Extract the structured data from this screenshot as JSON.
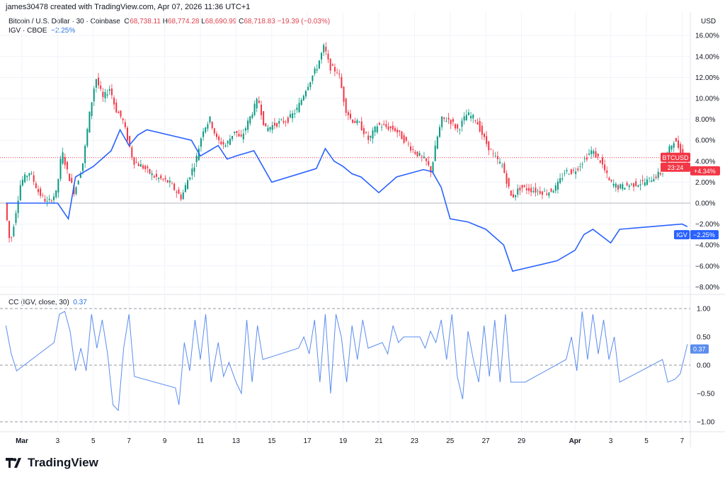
{
  "header": {
    "credit": "james30478 created with TradingView.com, Apr 07, 2026 11:36 UTC+1"
  },
  "legend": {
    "symbol": "Bitcoin / U.S. Dollar · 30 · Coinbase",
    "o_label": "O",
    "o": "68,738.11",
    "h_label": "H",
    "h": "68,774.28",
    "l_label": "L",
    "l": "68,690.99",
    "c_label": "C",
    "c": "68,718.83",
    "change": "−19.39 (−0.03%)",
    "compare": "IGV · CBOE",
    "compare_change": "−2.25%",
    "indicator": "CC (IGV, close, 30)",
    "indicator_value": "0.37"
  },
  "axis": {
    "currency": "USD"
  },
  "badges": {
    "btc_label": "BTCUSD",
    "btc_value": "+4.34%",
    "btc_timer": "23:24",
    "igv_label": "IGV",
    "igv_value": "−2.25%",
    "cc_value": "0.37"
  },
  "brand": {
    "name": "TradingView"
  },
  "colors": {
    "up": "#089981",
    "down": "#f23645",
    "igv": "#2962ff",
    "cc": "#5b8def",
    "grid": "#f0f3fa",
    "text": "#131722"
  },
  "chart_data": [
    {
      "type": "candlestick+line",
      "ylabel": "",
      "ylim": [
        -8,
        16
      ],
      "yticks": [
        "16.00%",
        "14.00%",
        "12.00%",
        "10.00%",
        "8.00%",
        "6.00%",
        "4.00%",
        "2.00%",
        "0.00%",
        "−2.00%",
        "−4.00%",
        "−6.00%",
        "−8.00%"
      ],
      "ytick_values": [
        16,
        14,
        12,
        10,
        8,
        6,
        4,
        2,
        0,
        -2,
        -4,
        -6,
        -8
      ],
      "xticks": [
        "Mar",
        "3",
        "5",
        "7",
        "9",
        "11",
        "13",
        "15",
        "17",
        "19",
        "21",
        "23",
        "25",
        "27",
        "29",
        "Apr",
        "3",
        "5",
        "7"
      ],
      "xtick_days": [
        0,
        2,
        4,
        6,
        8,
        10,
        12,
        14,
        16,
        18,
        20,
        22,
        24,
        26,
        28,
        31,
        33,
        35,
        37
      ],
      "series": [
        {
          "name": "BTCUSD",
          "unit": "% change",
          "points": [
            [
              -0.9,
              0
            ],
            [
              -0.6,
              -4
            ],
            [
              -0.3,
              -1
            ],
            [
              0,
              2
            ],
            [
              0.5,
              3
            ],
            [
              1,
              1
            ],
            [
              1.5,
              0
            ],
            [
              2,
              1
            ],
            [
              2.3,
              5
            ],
            [
              2.6,
              3
            ],
            [
              3,
              1
            ],
            [
              3.5,
              4
            ],
            [
              3.8,
              8
            ],
            [
              4.2,
              12
            ],
            [
              4.6,
              10
            ],
            [
              5,
              11
            ],
            [
              5.3,
              9
            ],
            [
              5.7,
              8
            ],
            [
              6,
              6
            ],
            [
              6.3,
              4
            ],
            [
              6.8,
              3.5
            ],
            [
              7.5,
              2.5
            ],
            [
              8.3,
              2
            ],
            [
              9,
              0.5
            ],
            [
              9.3,
              2
            ],
            [
              9.8,
              4
            ],
            [
              10.2,
              7
            ],
            [
              10.6,
              8
            ],
            [
              11,
              6
            ],
            [
              11.5,
              5.5
            ],
            [
              12,
              7
            ],
            [
              12.3,
              6
            ],
            [
              12.8,
              8
            ],
            [
              13.3,
              10
            ],
            [
              13.7,
              7
            ],
            [
              14.2,
              7.5
            ],
            [
              15,
              8
            ],
            [
              15.5,
              9
            ],
            [
              16,
              11
            ],
            [
              16.6,
              13
            ],
            [
              17,
              15
            ],
            [
              17.3,
              13
            ],
            [
              17.8,
              12.5
            ],
            [
              18.2,
              9
            ],
            [
              18.5,
              8
            ],
            [
              19,
              7.5
            ],
            [
              19.5,
              6
            ],
            [
              20,
              7.5
            ],
            [
              21,
              7
            ],
            [
              21.5,
              6
            ],
            [
              22,
              5
            ],
            [
              22.7,
              4
            ],
            [
              23,
              3
            ],
            [
              23.3,
              6
            ],
            [
              23.6,
              8
            ],
            [
              24,
              8
            ],
            [
              24.5,
              7
            ],
            [
              25,
              8.5
            ],
            [
              25.5,
              8
            ],
            [
              26,
              6
            ],
            [
              26.5,
              4.5
            ],
            [
              27,
              3.5
            ],
            [
              27.5,
              0.5
            ],
            [
              28,
              1.5
            ],
            [
              28.8,
              1.2
            ],
            [
              29.5,
              1
            ],
            [
              30,
              1.5
            ],
            [
              30.5,
              3
            ],
            [
              31,
              3
            ],
            [
              31.5,
              4
            ],
            [
              32,
              5
            ],
            [
              32.5,
              4
            ],
            [
              33,
              2
            ],
            [
              33.5,
              1.5
            ],
            [
              34,
              1.7
            ],
            [
              35,
              2
            ],
            [
              35.5,
              2.5
            ],
            [
              36,
              3
            ],
            [
              36.3,
              5
            ],
            [
              36.6,
              6
            ],
            [
              37,
              5
            ],
            [
              37.3,
              4.34
            ]
          ]
        },
        {
          "name": "IGV",
          "unit": "% change",
          "points": [
            [
              -0.9,
              0
            ],
            [
              2,
              0
            ],
            [
              2.6,
              -1.5
            ],
            [
              3,
              2.5
            ],
            [
              4,
              3.5
            ],
            [
              5,
              5
            ],
            [
              5.5,
              7
            ],
            [
              6,
              5.5
            ],
            [
              6.5,
              6.5
            ],
            [
              7,
              7
            ],
            [
              9.5,
              6
            ],
            [
              10,
              4.5
            ],
            [
              10.5,
              5
            ],
            [
              11,
              5.5
            ],
            [
              11.5,
              4.2
            ],
            [
              12,
              4.5
            ],
            [
              13,
              5
            ],
            [
              13.5,
              3.5
            ],
            [
              14,
              2
            ],
            [
              16.5,
              3.3
            ],
            [
              17,
              5.2
            ],
            [
              17.5,
              4
            ],
            [
              18,
              3.5
            ],
            [
              18.5,
              2.8
            ],
            [
              19,
              2.5
            ],
            [
              20,
              1
            ],
            [
              21,
              2.5
            ],
            [
              22.5,
              3.2
            ],
            [
              23,
              3
            ],
            [
              23.5,
              1.5
            ],
            [
              24,
              -1.5
            ],
            [
              25,
              -1.8
            ],
            [
              26,
              -2.5
            ],
            [
              27,
              -4
            ],
            [
              27.5,
              -6.5
            ],
            [
              30,
              -5.5
            ],
            [
              31,
              -4.5
            ],
            [
              31.5,
              -3
            ],
            [
              32,
              -2.5
            ],
            [
              33,
              -3.8
            ],
            [
              33.5,
              -2.5
            ],
            [
              37,
              -2
            ],
            [
              37.3,
              -2.25
            ]
          ]
        }
      ]
    },
    {
      "type": "line",
      "title": "CC (IGV, close, 30)",
      "ylim": [
        -1,
        1
      ],
      "yticks": [
        "1.00",
        "0.50",
        "0.00",
        "−0.50",
        "−1.00"
      ],
      "ytick_values": [
        1,
        0.5,
        0,
        -0.5,
        -1
      ],
      "series": [
        {
          "name": "CC",
          "points": [
            [
              -0.9,
              0.7
            ],
            [
              -0.6,
              0.2
            ],
            [
              -0.3,
              -0.1
            ],
            [
              1.8,
              0.4
            ],
            [
              2.1,
              0.9
            ],
            [
              2.4,
              0.95
            ],
            [
              2.7,
              0.6
            ],
            [
              3,
              -0.1
            ],
            [
              3.3,
              0.3
            ],
            [
              3.6,
              -0.1
            ],
            [
              3.9,
              0.9
            ],
            [
              4.2,
              0.3
            ],
            [
              4.5,
              0.8
            ],
            [
              4.8,
              0.2
            ],
            [
              5.1,
              -0.7
            ],
            [
              5.4,
              -0.8
            ],
            [
              5.7,
              0.3
            ],
            [
              6,
              0.9
            ],
            [
              6.3,
              -0.2
            ],
            [
              8.6,
              -0.4
            ],
            [
              8.8,
              -0.7
            ],
            [
              9.1,
              0.4
            ],
            [
              9.4,
              -0.1
            ],
            [
              9.7,
              0.8
            ],
            [
              10,
              0.1
            ],
            [
              10.3,
              0.9
            ],
            [
              10.6,
              -0.3
            ],
            [
              11,
              0.4
            ],
            [
              11.3,
              -0.2
            ],
            [
              11.6,
              0.05
            ],
            [
              12,
              -0.3
            ],
            [
              12.3,
              -0.5
            ],
            [
              12.6,
              0.8
            ],
            [
              12.9,
              -0.3
            ],
            [
              13.2,
              0.7
            ],
            [
              13.5,
              0.1
            ],
            [
              15.5,
              0.3
            ],
            [
              15.8,
              0.5
            ],
            [
              16.1,
              0.2
            ],
            [
              16.4,
              0.8
            ],
            [
              16.7,
              -0.3
            ],
            [
              17,
              0.9
            ],
            [
              17.3,
              -0.5
            ],
            [
              17.6,
              0.9
            ],
            [
              17.9,
              0.5
            ],
            [
              18.2,
              -0.3
            ],
            [
              18.5,
              0.7
            ],
            [
              18.8,
              0.1
            ],
            [
              19.1,
              0.8
            ],
            [
              19.4,
              0.3
            ],
            [
              20.2,
              0.4
            ],
            [
              20.5,
              0.2
            ],
            [
              20.8,
              0.7
            ],
            [
              21.1,
              0.4
            ],
            [
              21.4,
              0.5
            ],
            [
              22.3,
              0.5
            ],
            [
              22.6,
              0.3
            ],
            [
              22.9,
              0.6
            ],
            [
              23.2,
              0.4
            ],
            [
              23.5,
              0.8
            ],
            [
              23.8,
              0.1
            ],
            [
              24.1,
              0.9
            ],
            [
              24.4,
              -0.2
            ],
            [
              24.7,
              -0.6
            ],
            [
              25,
              0.6
            ],
            [
              25.3,
              0.1
            ],
            [
              25.6,
              -0.3
            ],
            [
              25.9,
              0.7
            ],
            [
              26.2,
              -0.2
            ],
            [
              26.5,
              0.8
            ],
            [
              26.8,
              -0.3
            ],
            [
              27.1,
              0.9
            ],
            [
              27.4,
              -0.3
            ],
            [
              28.2,
              -0.3
            ],
            [
              30.5,
              0.1
            ],
            [
              30.8,
              0.5
            ],
            [
              31.1,
              -0.1
            ],
            [
              31.4,
              0.95
            ],
            [
              31.7,
              0.1
            ],
            [
              32,
              0.9
            ],
            [
              32.3,
              0.2
            ],
            [
              32.6,
              0.8
            ],
            [
              32.9,
              0.1
            ],
            [
              33.2,
              0.5
            ],
            [
              33.5,
              -0.3
            ],
            [
              35.9,
              0.1
            ],
            [
              36.2,
              -0.3
            ],
            [
              36.6,
              -0.25
            ],
            [
              36.9,
              -0.15
            ],
            [
              37.3,
              0.37
            ]
          ]
        }
      ]
    }
  ]
}
